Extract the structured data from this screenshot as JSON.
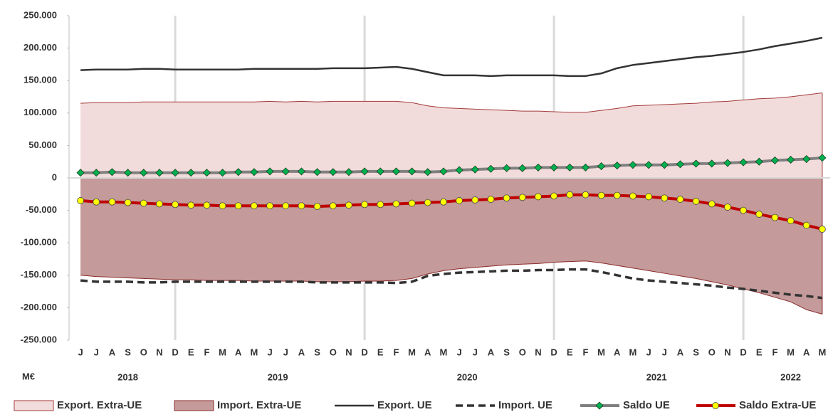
{
  "chart_data": {
    "type": "combo",
    "unit_label": "M€",
    "categories": [
      "J",
      "J",
      "A",
      "S",
      "O",
      "N",
      "D",
      "E",
      "F",
      "M",
      "A",
      "M",
      "J",
      "J",
      "A",
      "S",
      "O",
      "N",
      "D",
      "E",
      "F",
      "M",
      "A",
      "M",
      "J",
      "J",
      "A",
      "S",
      "O",
      "N",
      "D",
      "E",
      "F",
      "M",
      "A",
      "M",
      "J",
      "J",
      "A",
      "S",
      "O",
      "N",
      "D",
      "E",
      "F",
      "M",
      "A",
      "M"
    ],
    "year_groups": [
      {
        "label": "2018",
        "months": 7
      },
      {
        "label": "2019",
        "months": 12
      },
      {
        "label": "2020",
        "months": 12
      },
      {
        "label": "2021",
        "months": 12
      },
      {
        "label": "2022",
        "months": 5
      }
    ],
    "ylim": [
      -250000,
      250000
    ],
    "yticks": [
      {
        "value": 250000,
        "label": "250.000"
      },
      {
        "value": 200000,
        "label": "200.000"
      },
      {
        "value": 150000,
        "label": "150.000"
      },
      {
        "value": 100000,
        "label": "100.000"
      },
      {
        "value": 50000,
        "label": "50.000"
      },
      0,
      {
        "value": -50000,
        "label": "-50.000"
      },
      {
        "value": -100000,
        "label": "-100.000"
      },
      {
        "value": -150000,
        "label": "-150.000"
      },
      {
        "value": -200000,
        "label": "-200.000"
      },
      {
        "value": -250000,
        "label": "-250.000"
      }
    ],
    "series": [
      {
        "name": "Export. Extra-UE",
        "type": "area",
        "color": "#f2dcdb",
        "line_color": "#a33a3a",
        "values": [
          115000,
          116000,
          116000,
          116000,
          117000,
          117000,
          117000,
          117000,
          117000,
          117000,
          117000,
          117000,
          118000,
          117000,
          118000,
          117000,
          118000,
          118000,
          118000,
          118000,
          118000,
          116000,
          111000,
          108000,
          107000,
          106000,
          105000,
          104000,
          103000,
          103000,
          102000,
          101000,
          101000,
          104000,
          107000,
          111000,
          112000,
          113000,
          114000,
          115000,
          117000,
          118000,
          120000,
          122000,
          123000,
          125000,
          128000,
          131000
        ]
      },
      {
        "name": "Import. Extra-UE",
        "type": "area",
        "color": "#c49a9a",
        "line_color": "#8b2a2a",
        "values": [
          -150000,
          -152000,
          -153000,
          -154000,
          -155000,
          -156000,
          -157000,
          -157000,
          -158000,
          -158000,
          -158000,
          -159000,
          -159000,
          -159000,
          -159000,
          -160000,
          -160000,
          -160000,
          -159000,
          -159000,
          -158000,
          -155000,
          -148000,
          -143000,
          -140000,
          -138000,
          -136000,
          -134000,
          -133000,
          -132000,
          -130000,
          -129000,
          -128000,
          -131000,
          -135000,
          -139000,
          -143000,
          -147000,
          -151000,
          -155000,
          -160000,
          -165000,
          -171000,
          -177000,
          -184000,
          -191000,
          -203000,
          -210000
        ]
      },
      {
        "name": "Export. UE",
        "type": "line",
        "color": "#333333",
        "width": 2.5,
        "values": [
          166000,
          167000,
          167000,
          167000,
          168000,
          168000,
          167000,
          167000,
          167000,
          167000,
          167000,
          168000,
          168000,
          168000,
          168000,
          168000,
          169000,
          169000,
          169000,
          170000,
          171000,
          168000,
          163000,
          158000,
          158000,
          158000,
          157000,
          158000,
          158000,
          158000,
          158000,
          157000,
          157000,
          161000,
          169000,
          174000,
          177000,
          180000,
          183000,
          186000,
          188000,
          191000,
          194000,
          198000,
          203000,
          207000,
          211000,
          216000
        ]
      },
      {
        "name": "Import. UE",
        "type": "line",
        "color": "#333333",
        "width": 3.5,
        "dash": true,
        "values": [
          -158000,
          -160000,
          -160000,
          -160000,
          -161000,
          -161000,
          -160000,
          -160000,
          -160000,
          -160000,
          -160000,
          -160000,
          -160000,
          -160000,
          -160000,
          -161000,
          -161000,
          -161000,
          -161000,
          -161000,
          -162000,
          -160000,
          -151000,
          -148000,
          -146000,
          -145000,
          -144000,
          -143000,
          -143000,
          -142000,
          -142000,
          -141000,
          -141000,
          -145000,
          -150000,
          -155000,
          -158000,
          -160000,
          -162000,
          -164000,
          -166000,
          -169000,
          -171000,
          -174000,
          -177000,
          -180000,
          -182000,
          -185000
        ]
      },
      {
        "name": "Saldo UE",
        "type": "line",
        "color": "#808080",
        "width": 4,
        "marker": "diamond",
        "marker_color": "#00b050",
        "values": [
          8000,
          8000,
          9000,
          8000,
          8000,
          8000,
          8000,
          8000,
          8000,
          8000,
          9000,
          9000,
          10000,
          10000,
          10000,
          9000,
          9000,
          9000,
          10000,
          10000,
          10000,
          10000,
          9000,
          10000,
          12000,
          13000,
          14000,
          15000,
          15000,
          16000,
          16000,
          16000,
          16000,
          18000,
          19000,
          20000,
          20000,
          20000,
          21000,
          22000,
          22000,
          23000,
          24000,
          25000,
          27000,
          28000,
          29000,
          31000
        ]
      },
      {
        "name": "Saldo Extra-UE",
        "type": "line",
        "color": "#c00000",
        "width": 4,
        "marker": "circle",
        "marker_color": "#ffff00",
        "values": [
          -35000,
          -37000,
          -37000,
          -38000,
          -39000,
          -40000,
          -41000,
          -42000,
          -42000,
          -43000,
          -43000,
          -43000,
          -43000,
          -43000,
          -43000,
          -44000,
          -43000,
          -42000,
          -41000,
          -41000,
          -40000,
          -39000,
          -38000,
          -37000,
          -35000,
          -34000,
          -33000,
          -31000,
          -30000,
          -29000,
          -28000,
          -26000,
          -26000,
          -27000,
          -27000,
          -28000,
          -29000,
          -31000,
          -33000,
          -36000,
          -40000,
          -45000,
          -50000,
          -56000,
          -61000,
          -66000,
          -73000,
          -79000
        ]
      }
    ]
  }
}
